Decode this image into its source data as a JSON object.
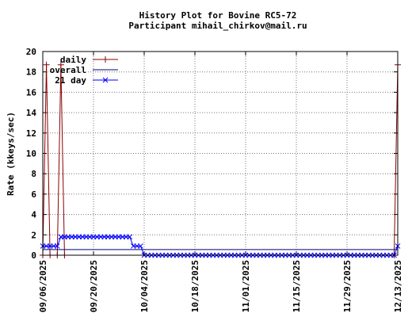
{
  "chart_data": {
    "type": "line",
    "title": "History Plot for Bovine RC5-72",
    "subtitle": "Participant mihail_chirkov@mail.ru",
    "xlabel": "",
    "ylabel": "Rate (kkeys/sec)",
    "ylim": [
      0,
      20
    ],
    "yticks": [
      0,
      2,
      4,
      6,
      8,
      10,
      12,
      14,
      16,
      18,
      20
    ],
    "xlim": [
      "2025-09-06",
      "2025-12-13"
    ],
    "xticks": [
      "09/06/2025",
      "09/20/2025",
      "10/04/2025",
      "10/18/2025",
      "11/01/2025",
      "11/15/2025",
      "11/29/2025",
      "12/13/2025"
    ],
    "grid": true,
    "legend_position": "top-left",
    "series": [
      {
        "name": "daily",
        "color": "#8b0000",
        "marker": "plus",
        "points": [
          [
            "2025-09-06",
            0
          ],
          [
            "2025-09-07",
            18.7
          ],
          [
            "2025-09-08",
            0
          ],
          [
            "2025-09-10",
            0
          ],
          [
            "2025-09-11",
            18.7
          ],
          [
            "2025-09-12",
            0
          ],
          [
            "2025-12-12",
            0
          ],
          [
            "2025-12-13",
            18.7
          ]
        ]
      },
      {
        "name": "overall",
        "color": "#000080",
        "marker": "none",
        "points": [
          [
            "2025-09-06",
            0.55
          ],
          [
            "2025-12-13",
            0.55
          ]
        ]
      },
      {
        "name": "21 day",
        "color": "#0000ff",
        "marker": "cross",
        "points": [
          [
            "2025-09-06",
            0.9
          ],
          [
            "2025-09-10",
            0.9
          ],
          [
            "2025-09-11",
            1.8
          ],
          [
            "2025-09-30",
            1.8
          ],
          [
            "2025-10-01",
            0.9
          ],
          [
            "2025-10-03",
            0.9
          ],
          [
            "2025-10-04",
            0
          ],
          [
            "2025-12-12",
            0
          ],
          [
            "2025-12-13",
            0.9
          ]
        ]
      }
    ]
  }
}
